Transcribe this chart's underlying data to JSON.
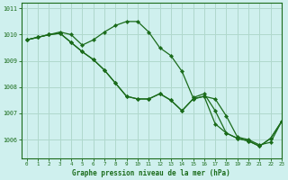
{
  "title": "Graphe pression niveau de la mer (hPa)",
  "background_color": "#cff0ee",
  "grid_color": "#b0d8cc",
  "line_color": "#1a6b1a",
  "xlim": [
    -0.5,
    23
  ],
  "ylim": [
    1005.3,
    1011.2
  ],
  "yticks": [
    1006,
    1007,
    1008,
    1009,
    1010,
    1011
  ],
  "xticks": [
    0,
    1,
    2,
    3,
    4,
    5,
    6,
    7,
    8,
    9,
    10,
    11,
    12,
    13,
    14,
    15,
    16,
    17,
    18,
    19,
    20,
    21,
    22,
    23
  ],
  "series1": [
    1009.8,
    1009.9,
    1010.0,
    1010.1,
    1010.0,
    1009.6,
    1009.8,
    1010.1,
    1010.35,
    1010.5,
    1010.5,
    1010.1,
    1009.5,
    1009.2,
    1008.6,
    1007.6,
    1007.75,
    1007.1,
    1006.25,
    1006.05,
    1005.95,
    1005.75,
    1006.05,
    1006.7
  ],
  "series2": [
    1009.8,
    1009.9,
    1010.0,
    1010.05,
    1009.7,
    1009.35,
    1009.05,
    1008.65,
    1008.15,
    1007.65,
    1007.55,
    1007.55,
    1007.75,
    1007.5,
    1007.1,
    1007.55,
    1007.65,
    1007.55,
    1006.9,
    1006.1,
    1006.0,
    1005.8,
    1005.9,
    1006.7
  ],
  "series3": [
    1009.8,
    1009.9,
    1010.0,
    1010.05,
    1009.7,
    1009.35,
    1009.05,
    1008.65,
    1008.15,
    1007.65,
    1007.55,
    1007.55,
    1007.75,
    1007.5,
    1007.1,
    1007.55,
    1007.65,
    1006.6,
    1006.25,
    1006.05,
    1005.95,
    1005.75,
    1006.05,
    1006.7
  ]
}
